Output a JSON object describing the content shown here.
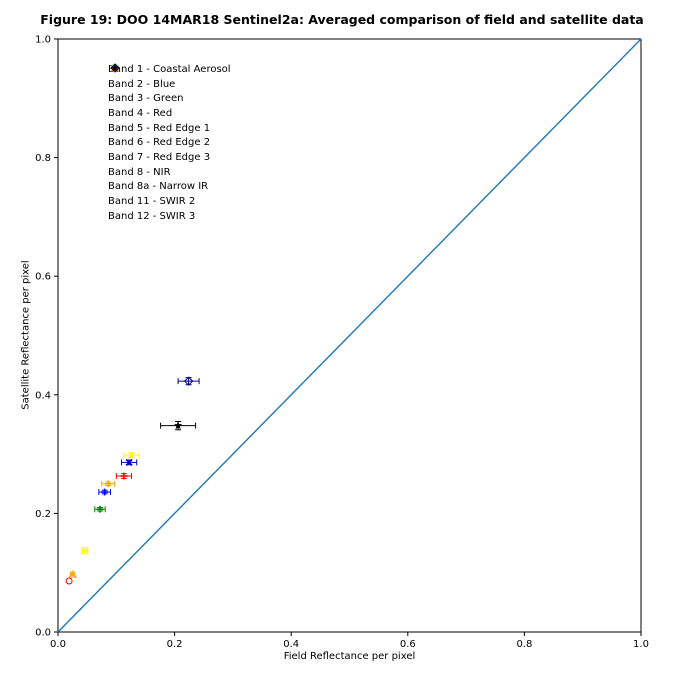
{
  "chart_data": {
    "type": "scatter",
    "title": "Figure 19: DOO 14MAR18  Sentinel2a: Averaged comparison of field and satellite data",
    "xlabel": "Field Reflectance per pixel",
    "ylabel": "Satellite Reflectance per pixel",
    "xlim": [
      0.0,
      1.0
    ],
    "ylim": [
      0.0,
      1.0
    ],
    "xticks": [
      "0.0",
      "0.2",
      "0.4",
      "0.6",
      "0.8",
      "1.0"
    ],
    "yticks": [
      "0.0",
      "0.2",
      "0.4",
      "0.6",
      "0.8",
      "1.0"
    ],
    "legend_position": "top-left",
    "reference_line": {
      "x": [
        0.0,
        1.0
      ],
      "y": [
        0.0,
        1.0
      ],
      "color": "#1f77b4"
    },
    "series": [
      {
        "name": "Band 1 - Coastal Aerosol",
        "marker": "circle-open",
        "color": "#ff0000",
        "x": 0.019,
        "y": 0.086,
        "xerr": 0.0,
        "yerr": 0.0
      },
      {
        "name": "Band 2 - Blue",
        "marker": "triangle-open",
        "color": "#ffa500",
        "x": 0.025,
        "y": 0.097,
        "xerr": 0.003,
        "yerr": 0.002
      },
      {
        "name": "Band 3 - Green",
        "marker": "square-open",
        "color": "#ffff00",
        "x": 0.046,
        "y": 0.137,
        "xerr": 0.004,
        "yerr": 0.002
      },
      {
        "name": "Band 4 - Red",
        "marker": "plus",
        "color": "#008000",
        "x": 0.072,
        "y": 0.207,
        "xerr": 0.009,
        "yerr": 0.003
      },
      {
        "name": "Band 5 - Red Edge 1",
        "marker": "plus",
        "color": "#0000ff",
        "x": 0.08,
        "y": 0.236,
        "xerr": 0.01,
        "yerr": 0.003
      },
      {
        "name": "Band 6 - Red Edge 2",
        "marker": "plus",
        "color": "#ffa500",
        "x": 0.086,
        "y": 0.25,
        "xerr": 0.011,
        "yerr": 0.003
      },
      {
        "name": "Band 7 - Red Edge 3",
        "marker": "plus",
        "color": "#ff0000",
        "x": 0.113,
        "y": 0.263,
        "xerr": 0.013,
        "yerr": 0.004
      },
      {
        "name": "Band 8 - NIR",
        "marker": "x",
        "color": "#0000cd",
        "x": 0.122,
        "y": 0.286,
        "xerr": 0.013,
        "yerr": 0.004
      },
      {
        "name": "Band 8a - Narrow IR",
        "marker": "x",
        "color": "#ffff00",
        "x": 0.126,
        "y": 0.298,
        "xerr": 0.013,
        "yerr": 0.004
      },
      {
        "name": "Band 11 - SWIR 2",
        "marker": "diamond-open",
        "color": "#000080",
        "x": 0.224,
        "y": 0.423,
        "xerr": 0.018,
        "yerr": 0.006
      },
      {
        "name": "Band 12 - SWIR 3",
        "marker": "star",
        "color": "#000000",
        "x": 0.206,
        "y": 0.348,
        "xerr": 0.03,
        "yerr": 0.007
      }
    ]
  }
}
